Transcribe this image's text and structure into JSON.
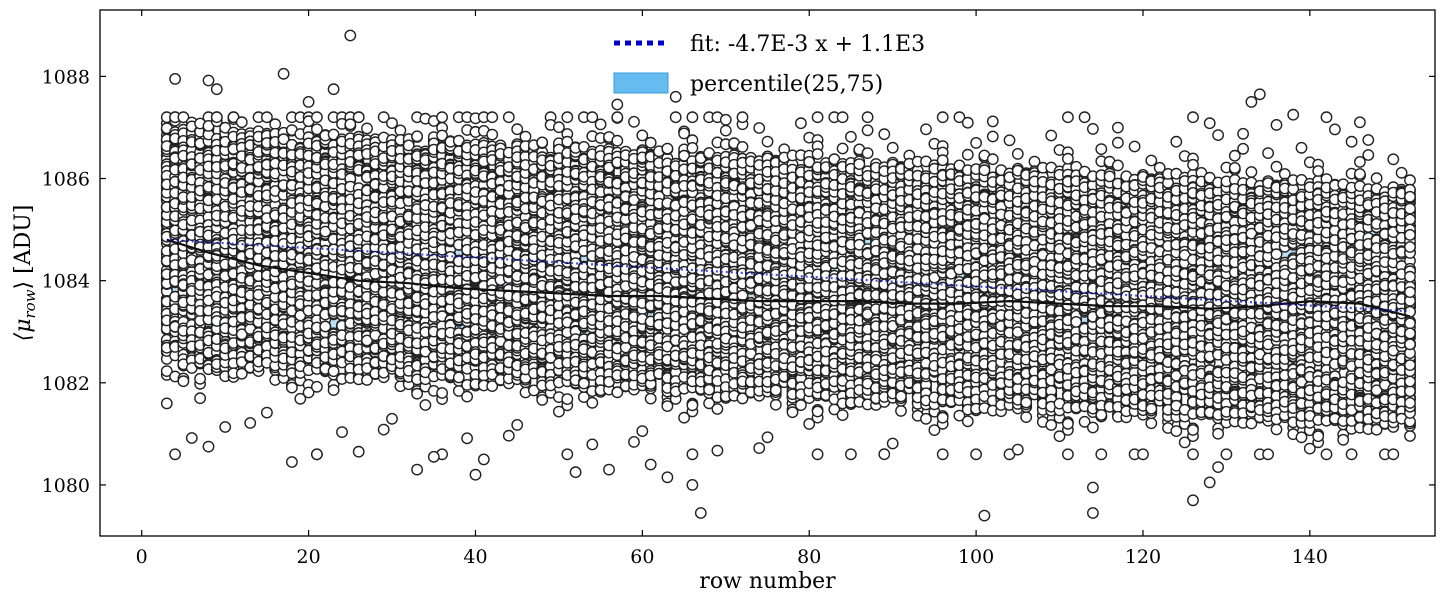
{
  "chart_data": {
    "type": "scatter",
    "xlabel": "row number",
    "ylabel": "⟨μrow⟩ [ADU]",
    "ylabel_parts": {
      "open": "⟨μ",
      "sub": "row",
      "close": "⟩ [ADU]"
    },
    "xlim": [
      -5,
      155
    ],
    "ylim": [
      1079,
      1089.3
    ],
    "x_ticks": [
      0,
      20,
      40,
      60,
      80,
      100,
      120,
      140
    ],
    "y_ticks": [
      1080,
      1082,
      1084,
      1086,
      1088
    ],
    "grid": false,
    "legend_position": "top-center",
    "scatter": {
      "marker": "open-circle",
      "edge_color": "#222222",
      "x_range": [
        3,
        152
      ],
      "points_per_row": 110,
      "center_start": 1084.7,
      "center_end": 1083.5,
      "inner_spread": 2.3,
      "outliers": [
        {
          "x": 25,
          "y": 1088.8
        },
        {
          "x": 17,
          "y": 1088.05
        },
        {
          "x": 4,
          "y": 1087.95
        },
        {
          "x": 8,
          "y": 1087.92
        },
        {
          "x": 23,
          "y": 1087.75
        },
        {
          "x": 9,
          "y": 1087.75
        },
        {
          "x": 20,
          "y": 1087.5
        },
        {
          "x": 8,
          "y": 1080.75
        },
        {
          "x": 18,
          "y": 1080.45
        },
        {
          "x": 21,
          "y": 1080.6
        },
        {
          "x": 26,
          "y": 1080.65
        },
        {
          "x": 33,
          "y": 1080.3
        },
        {
          "x": 35,
          "y": 1080.55
        },
        {
          "x": 40,
          "y": 1080.2
        },
        {
          "x": 41,
          "y": 1080.5
        },
        {
          "x": 52,
          "y": 1080.25
        },
        {
          "x": 56,
          "y": 1080.3
        },
        {
          "x": 61,
          "y": 1080.4
        },
        {
          "x": 63,
          "y": 1080.15
        },
        {
          "x": 66,
          "y": 1080.0
        },
        {
          "x": 67,
          "y": 1079.45
        },
        {
          "x": 64,
          "y": 1087.6
        },
        {
          "x": 57,
          "y": 1087.45
        },
        {
          "x": 70,
          "y": 1087.15
        },
        {
          "x": 101,
          "y": 1079.4
        },
        {
          "x": 114,
          "y": 1079.45
        },
        {
          "x": 114,
          "y": 1079.95
        },
        {
          "x": 126,
          "y": 1079.7
        },
        {
          "x": 128,
          "y": 1080.05
        },
        {
          "x": 129,
          "y": 1080.35
        },
        {
          "x": 133,
          "y": 1087.5
        },
        {
          "x": 134,
          "y": 1087.65
        },
        {
          "x": 138,
          "y": 1087.25
        },
        {
          "x": 146,
          "y": 1087.1
        },
        {
          "x": 136,
          "y": 1087.05
        }
      ]
    },
    "percentile_band": {
      "label": "percentile(25,75)",
      "color": "#66bbf0",
      "low": 1082.9,
      "high": 1085.0
    },
    "mean_line": {
      "color": "#111111",
      "points": [
        [
          3,
          1084.8
        ],
        [
          8,
          1084.55
        ],
        [
          14,
          1084.3
        ],
        [
          20,
          1084.15
        ],
        [
          26,
          1084.0
        ],
        [
          32,
          1083.95
        ],
        [
          38,
          1083.85
        ],
        [
          44,
          1083.8
        ],
        [
          50,
          1083.75
        ],
        [
          56,
          1083.7
        ],
        [
          62,
          1083.7
        ],
        [
          68,
          1083.65
        ],
        [
          74,
          1083.6
        ],
        [
          80,
          1083.6
        ],
        [
          86,
          1083.6
        ],
        [
          92,
          1083.55
        ],
        [
          98,
          1083.55
        ],
        [
          104,
          1083.6
        ],
        [
          110,
          1083.55
        ],
        [
          116,
          1083.5
        ],
        [
          122,
          1083.5
        ],
        [
          128,
          1083.45
        ],
        [
          134,
          1083.5
        ],
        [
          140,
          1083.6
        ],
        [
          146,
          1083.55
        ],
        [
          152,
          1083.3
        ]
      ]
    },
    "fit": {
      "label": "fit: -4.7E-3 x + 1.1E3",
      "color": "#0000cc",
      "slope": -0.0047,
      "x_range": [
        3,
        152
      ]
    }
  }
}
